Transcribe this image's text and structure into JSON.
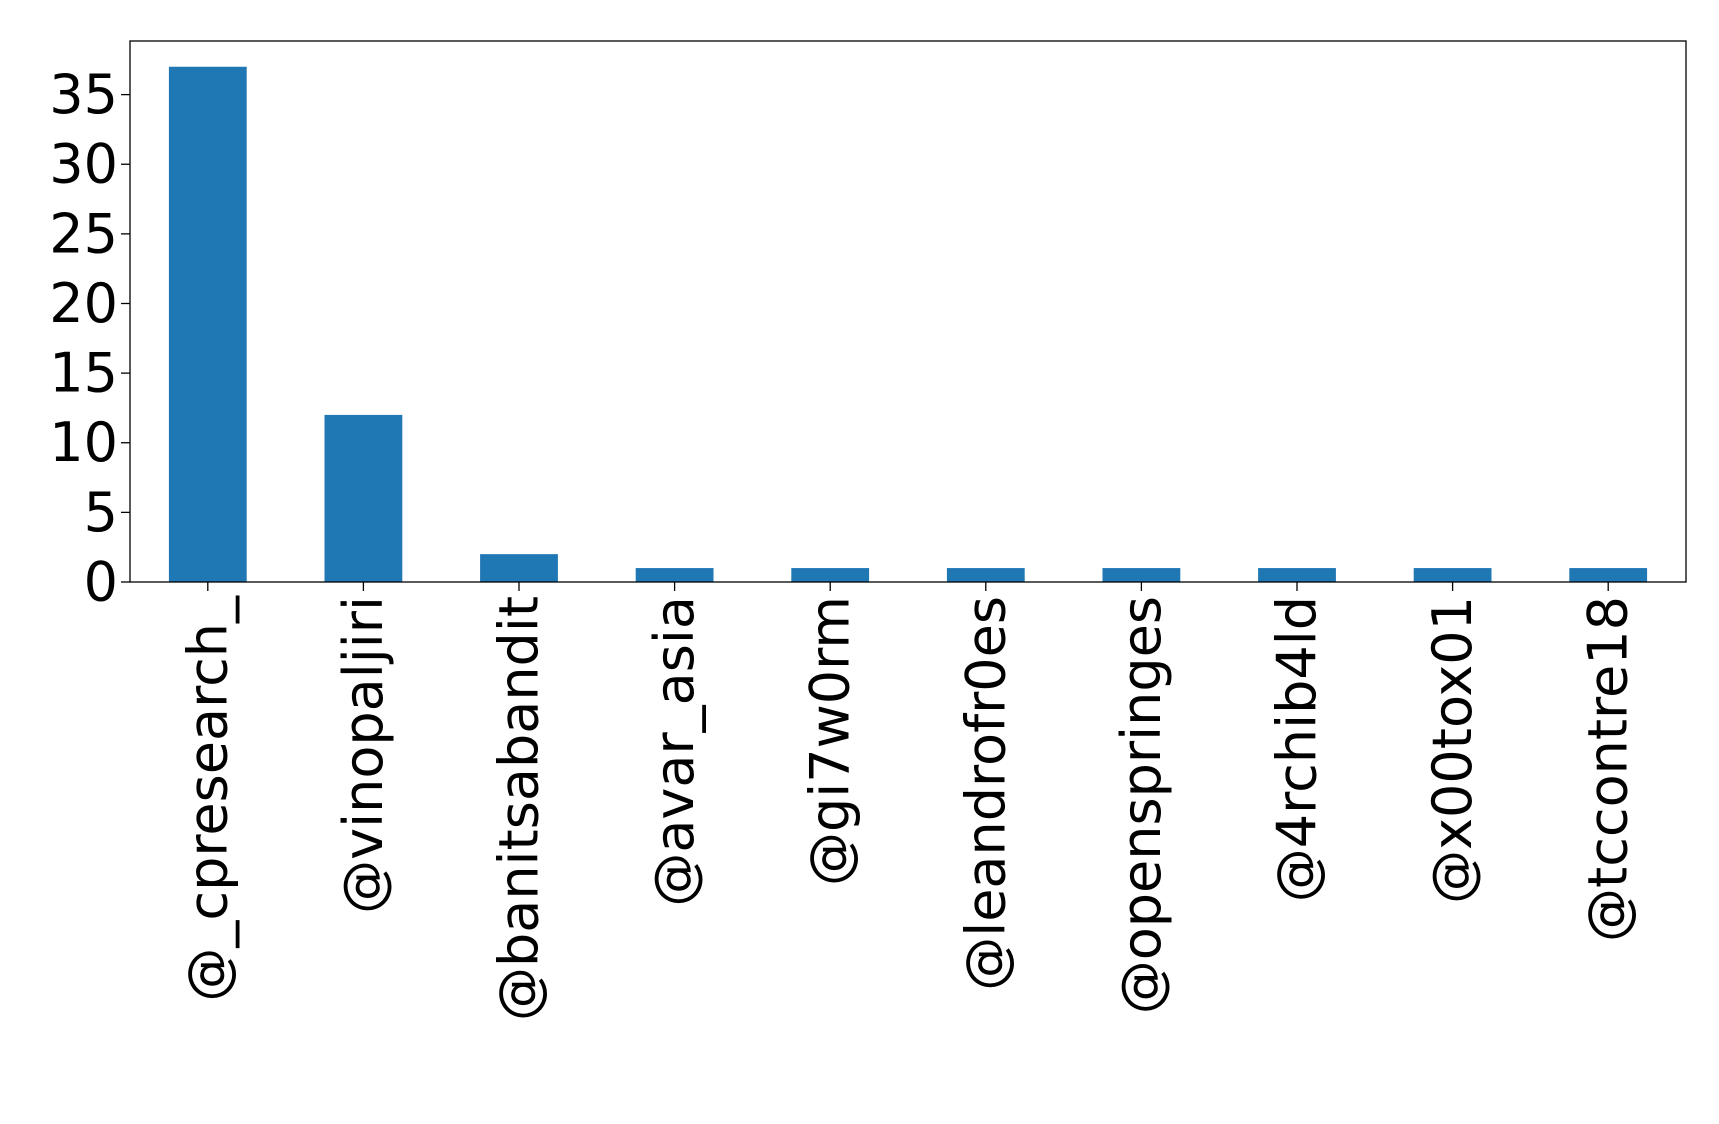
{
  "chart_data": {
    "type": "bar",
    "title": "",
    "xlabel": "",
    "ylabel": "",
    "categories": [
      "@_cpresearch_",
      "@vinopaljiri",
      "@banitsabandit",
      "@avar_asia",
      "@gi7w0rm",
      "@leandrofr0es",
      "@openspringes",
      "@4rchib4ld",
      "@x00tox01",
      "@tccontre18"
    ],
    "values": [
      37,
      12,
      2,
      1,
      1,
      1,
      1,
      1,
      1,
      1
    ],
    "ylim": [
      0,
      38.85
    ],
    "yticks": [
      0,
      5,
      10,
      15,
      20,
      25,
      30,
      35
    ],
    "grid": false,
    "legend": "none",
    "bar_color": "#1f77b4"
  }
}
